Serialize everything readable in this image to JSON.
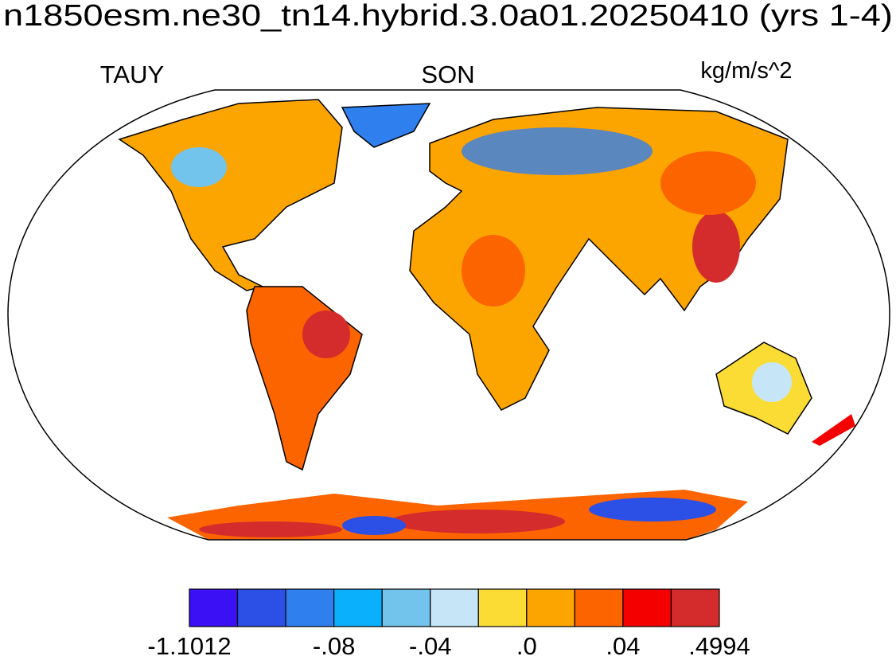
{
  "header": {
    "title": "n1850esm.ne30_tn14.hybrid.3.0a01.20250410 (yrs 1-4)",
    "left": "TAUY",
    "center": "SON",
    "right": "kg/m/s^2"
  },
  "colorbar": {
    "colors": [
      "#3b10f5",
      "#2c4fe6",
      "#2f80ee",
      "#0bb0fc",
      "#72c4ec",
      "#c6e6f7",
      "#fbdc34",
      "#fca400",
      "#fc6400",
      "#f40000",
      "#d42c2c"
    ],
    "boundary_labels": [
      "-1.1012",
      null,
      null,
      "-.08",
      null,
      "-.04",
      null,
      ".0",
      null,
      ".04",
      null,
      ".4994"
    ]
  }
}
